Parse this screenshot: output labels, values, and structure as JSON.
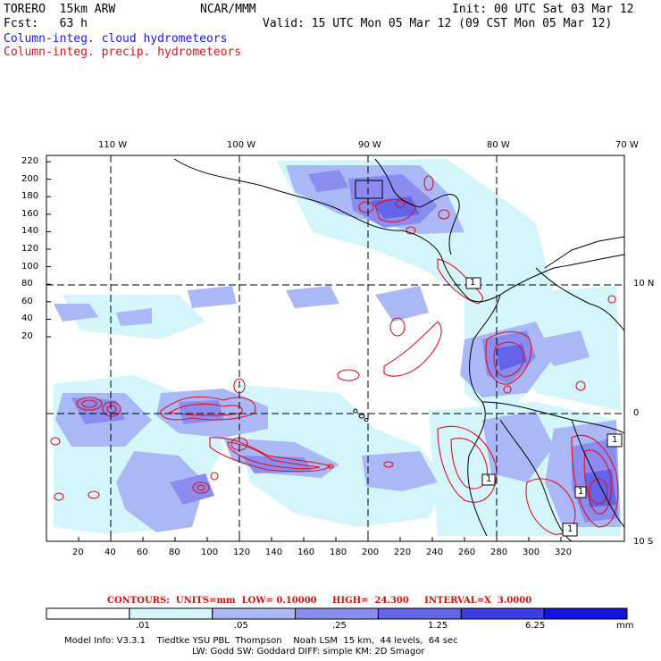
{
  "header": {
    "model": "TORERO  15km ARW",
    "center": "NCAR/MMM",
    "init": "Init: 00 UTC Sat 03 Mar 12",
    "fcst": "Fcst:   63 h",
    "valid": "Valid: 15 UTC Mon 05 Mar 12 (09 CST Mon 05 Mar 12)"
  },
  "legend_titles": {
    "cloud": "Column-integ. cloud hydrometeors",
    "precip": "Column-integ. precip. hydrometeors"
  },
  "longitude_labels": [
    "110 W",
    "100 W",
    "90 W",
    "80 W",
    "70 W"
  ],
  "latitude_labels": [
    "10 N",
    "0",
    "10 S"
  ],
  "y_ticks": [
    "220",
    "200",
    "180",
    "160",
    "140",
    "120",
    "100",
    "80",
    "60",
    "40",
    "20"
  ],
  "x_ticks": [
    "20",
    "40",
    "60",
    "80",
    "100",
    "120",
    "140",
    "160",
    "180",
    "200",
    "220",
    "240",
    "260",
    "280",
    "300",
    "320"
  ],
  "contour_info": "CONTOURS:  UNITS=mm  LOW= 0.10000     HIGH=  24.300     INTERVAL=X  3.0000",
  "colorbar": {
    "unit": "mm",
    "labels": [
      ".01",
      ".05",
      ".25",
      "1.25",
      "6.25"
    ],
    "colors": [
      "#ffffff",
      "#d4f6fb",
      "#aab8f5",
      "#8a8cf0",
      "#6464ea",
      "#3c3ce4",
      "#1414dc"
    ]
  },
  "contour_labels": [
    "1",
    "1",
    "1",
    "1",
    "1"
  ],
  "footer": {
    "line1": "Model Info: V3.3.1    Tiedtke YSU PBL  Thompson    Noah LSM  15 km,  44 levels,  64 sec",
    "line2": "LW: Godd SW: Goddard DIFF: simple KM: 2D Smagor"
  }
}
